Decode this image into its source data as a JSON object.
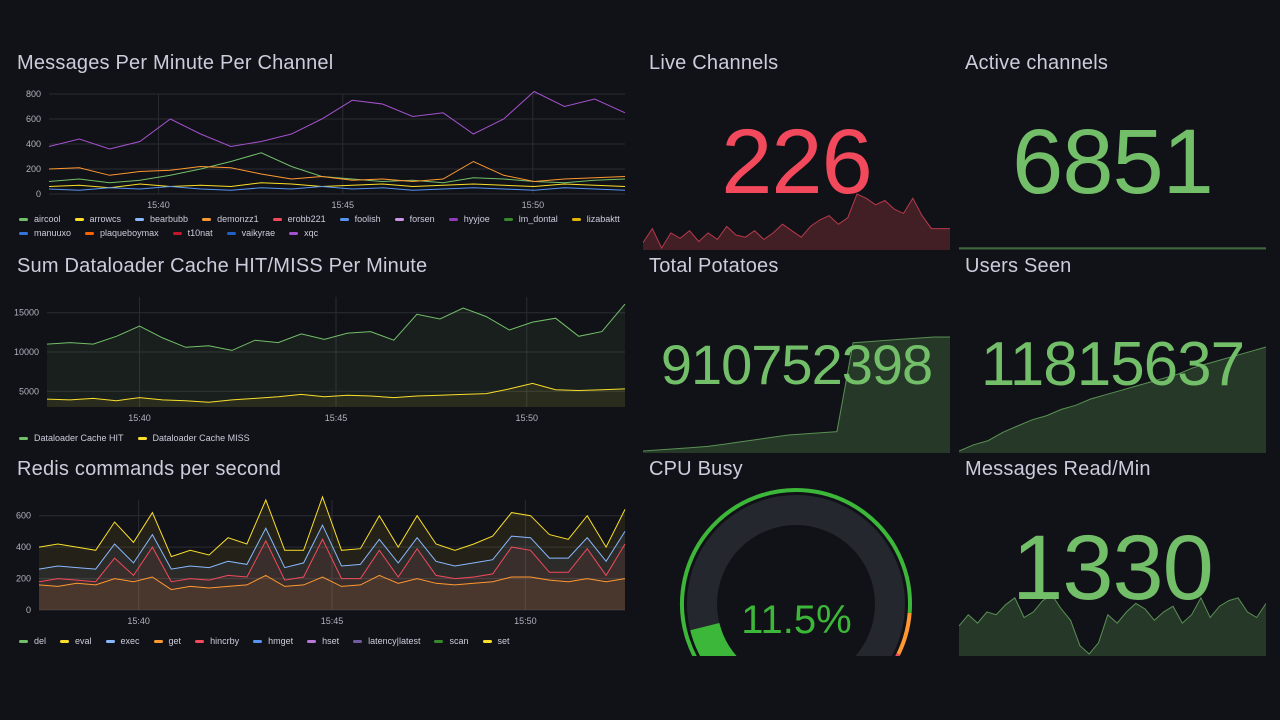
{
  "colors": {
    "green": "#73bf69",
    "red": "#f2495c",
    "yellow": "#fade2a",
    "blue": "#5794f2",
    "orange": "#ff9830",
    "purple": "#b877d9",
    "pink": "#ff7383",
    "dark_green": "#37872d",
    "dark_red": "#c4162a",
    "light_blue": "#8ab8ff",
    "gauge_green": "#3cb739"
  },
  "panels": {
    "messages_per_minute": {
      "title": "Messages Per Minute Per Channel",
      "y_ticks": [
        "800",
        "600",
        "400",
        "200",
        "0"
      ],
      "x_ticks": [
        "15:40",
        "15:45",
        "15:50"
      ],
      "legend": [
        {
          "name": "aircool",
          "color": "#73bf69"
        },
        {
          "name": "arrowcs",
          "color": "#fade2a"
        },
        {
          "name": "bearbubb",
          "color": "#8ab8ff"
        },
        {
          "name": "demonzz1",
          "color": "#ff9830"
        },
        {
          "name": "erobb221",
          "color": "#f2495c"
        },
        {
          "name": "foolish",
          "color": "#5794f2"
        },
        {
          "name": "forsen",
          "color": "#ca95e5"
        },
        {
          "name": "hyyjoe",
          "color": "#8f3bb8"
        },
        {
          "name": "lm_dontal",
          "color": "#37872d"
        },
        {
          "name": "lizabaktt",
          "color": "#e0b400"
        },
        {
          "name": "manuuxo",
          "color": "#3274d9"
        },
        {
          "name": "plaqueboymax",
          "color": "#fa6400"
        },
        {
          "name": "t10nat",
          "color": "#c4162a"
        },
        {
          "name": "vaikyrae",
          "color": "#1f60c4"
        },
        {
          "name": "xqc",
          "color": "#a352cc"
        }
      ]
    },
    "dataloader_cache": {
      "title": "Sum Dataloader Cache HIT/MISS Per Minute",
      "y_ticks": [
        "15000",
        "10000",
        "5000"
      ],
      "x_ticks": [
        "15:40",
        "15:45",
        "15:50"
      ],
      "legend": [
        {
          "name": "Dataloader Cache HIT",
          "color": "#73bf69"
        },
        {
          "name": "Dataloader Cache MISS",
          "color": "#fade2a"
        }
      ]
    },
    "redis_commands": {
      "title": "Redis commands per second",
      "y_ticks": [
        "600",
        "400",
        "200",
        "0"
      ],
      "x_ticks": [
        "15:40",
        "15:45",
        "15:50"
      ],
      "legend": [
        {
          "name": "del",
          "color": "#73bf69"
        },
        {
          "name": "eval",
          "color": "#fade2a"
        },
        {
          "name": "exec",
          "color": "#8ab8ff"
        },
        {
          "name": "get",
          "color": "#ff9830"
        },
        {
          "name": "hincrby",
          "color": "#f2495c"
        },
        {
          "name": "hmget",
          "color": "#5794f2"
        },
        {
          "name": "hset",
          "color": "#b877d9"
        },
        {
          "name": "latency|latest",
          "color": "#705da0"
        },
        {
          "name": "scan",
          "color": "#37872d"
        },
        {
          "name": "set",
          "color": "#fade2a"
        }
      ]
    },
    "live_channels": {
      "title": "Live Channels",
      "value": "226",
      "color": "#f2495c"
    },
    "active_channels": {
      "title": "Active channels",
      "value": "6851",
      "color": "#73bf69"
    },
    "total_potatoes": {
      "title": "Total Potatoes",
      "value": "910752398",
      "color": "#73bf69"
    },
    "users_seen": {
      "title": "Users Seen",
      "value": "11815637",
      "color": "#73bf69"
    },
    "cpu_busy": {
      "title": "CPU Busy",
      "value": "11.5%",
      "percent": 11.5,
      "color": "#3cb739"
    },
    "messages_read": {
      "title": "Messages Read/Min",
      "value": "1330",
      "color": "#73bf69"
    }
  },
  "chart_data": [
    {
      "type": "line",
      "title": "Messages Per Minute Per Channel",
      "ylim": [
        0,
        800
      ],
      "x_tick_labels": [
        "15:40",
        "15:45",
        "15:50"
      ],
      "series": [
        {
          "name": "xqc",
          "values": [
            380,
            440,
            360,
            420,
            600,
            480,
            380,
            420,
            480,
            600,
            750,
            720,
            620,
            650,
            480,
            600,
            820,
            700,
            760,
            650
          ]
        },
        {
          "name": "aircool",
          "values": [
            100,
            120,
            90,
            110,
            150,
            200,
            260,
            330,
            220,
            140,
            120,
            100,
            110,
            90,
            130,
            120,
            100,
            90,
            110,
            120
          ]
        },
        {
          "name": "demonzz1",
          "values": [
            200,
            210,
            150,
            180,
            190,
            220,
            210,
            160,
            120,
            140,
            110,
            120,
            100,
            120,
            260,
            150,
            100,
            120,
            130,
            140
          ]
        },
        {
          "name": "arrowcs",
          "values": [
            60,
            70,
            50,
            80,
            60,
            70,
            60,
            90,
            80,
            60,
            70,
            80,
            60,
            70,
            80,
            70,
            60,
            80,
            70,
            60
          ]
        },
        {
          "name": "foolish",
          "values": [
            40,
            30,
            50,
            40,
            60,
            40,
            30,
            50,
            40,
            60,
            40,
            50,
            30,
            40,
            50,
            40,
            30,
            50,
            40,
            30
          ]
        }
      ]
    },
    {
      "type": "area",
      "title": "Sum Dataloader Cache HIT/MISS Per Minute",
      "ylim": [
        3000,
        17000
      ],
      "x_tick_labels": [
        "15:40",
        "15:45",
        "15:50"
      ],
      "series": [
        {
          "name": "Dataloader Cache HIT",
          "values": [
            11000,
            11200,
            11000,
            12000,
            13300,
            11800,
            10600,
            10800,
            10200,
            11500,
            11200,
            12300,
            11600,
            12400,
            12600,
            11500,
            14800,
            14200,
            15600,
            14500,
            12800,
            13800,
            14300,
            12000,
            12600,
            16100
          ]
        },
        {
          "name": "Dataloader Cache MISS",
          "values": [
            4000,
            3900,
            4100,
            3800,
            4200,
            3900,
            3800,
            3600,
            3900,
            4100,
            4300,
            4600,
            4300,
            4500,
            4400,
            4200,
            4400,
            4500,
            4600,
            4700,
            5300,
            6000,
            5200,
            5100,
            5200,
            5300
          ]
        }
      ]
    },
    {
      "type": "area",
      "title": "Redis commands per second",
      "ylim": [
        0,
        700
      ],
      "x_tick_labels": [
        "15:40",
        "15:45",
        "15:50"
      ],
      "series": [
        {
          "name": "eval",
          "values": [
            400,
            420,
            400,
            380,
            560,
            430,
            620,
            340,
            380,
            350,
            460,
            420,
            700,
            380,
            380,
            720,
            380,
            390,
            600,
            400,
            600,
            420,
            380,
            420,
            470,
            620,
            600,
            480,
            450,
            600,
            400,
            640
          ]
        },
        {
          "name": "exec",
          "values": [
            260,
            280,
            270,
            260,
            420,
            300,
            480,
            260,
            280,
            270,
            310,
            290,
            520,
            270,
            300,
            540,
            280,
            290,
            450,
            300,
            460,
            310,
            280,
            300,
            320,
            470,
            460,
            330,
            330,
            460,
            310,
            500
          ]
        },
        {
          "name": "hincrby",
          "values": [
            180,
            200,
            190,
            180,
            330,
            220,
            400,
            180,
            200,
            190,
            220,
            210,
            440,
            190,
            210,
            450,
            200,
            200,
            380,
            210,
            390,
            220,
            200,
            210,
            230,
            400,
            380,
            240,
            240,
            390,
            220,
            420
          ]
        },
        {
          "name": "get",
          "values": [
            160,
            150,
            170,
            160,
            200,
            180,
            210,
            130,
            150,
            140,
            150,
            160,
            220,
            150,
            160,
            210,
            150,
            160,
            220,
            170,
            200,
            170,
            160,
            170,
            180,
            210,
            210,
            190,
            180,
            200,
            180,
            200
          ]
        }
      ]
    }
  ]
}
